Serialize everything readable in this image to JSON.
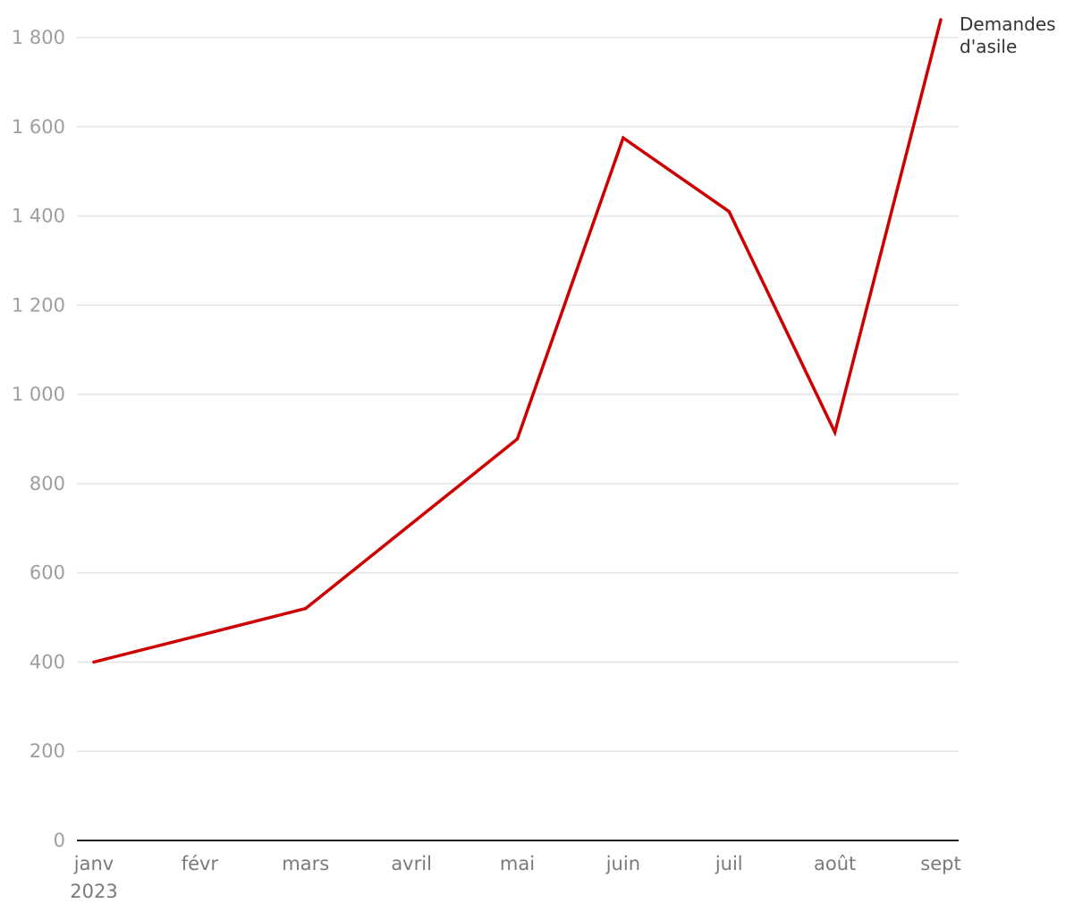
{
  "chart_data": {
    "type": "line",
    "categories": [
      "janv",
      "févr",
      "mars",
      "avril",
      "mai",
      "juin",
      "juil",
      "août",
      "sept"
    ],
    "year_label": "2023",
    "series": [
      {
        "name": "Demandes d'asile",
        "name_lines": [
          "Demandes",
          "d'asile"
        ],
        "color": "#cc0000",
        "values": [
          400,
          460,
          520,
          710,
          900,
          1575,
          1410,
          915,
          1840
        ]
      }
    ],
    "yticks": [
      0,
      200,
      400,
      600,
      800,
      1000,
      1200,
      1400,
      1600,
      1800
    ],
    "ytick_labels": [
      "0",
      "200",
      "400",
      "600",
      "800",
      "1 000",
      "1 200",
      "1 400",
      "1 600",
      "1 800"
    ],
    "ylim": [
      0,
      1800
    ],
    "grid": true,
    "title": "",
    "xlabel": "",
    "ylabel": "",
    "legend": "inline label at end of line, top-right"
  }
}
